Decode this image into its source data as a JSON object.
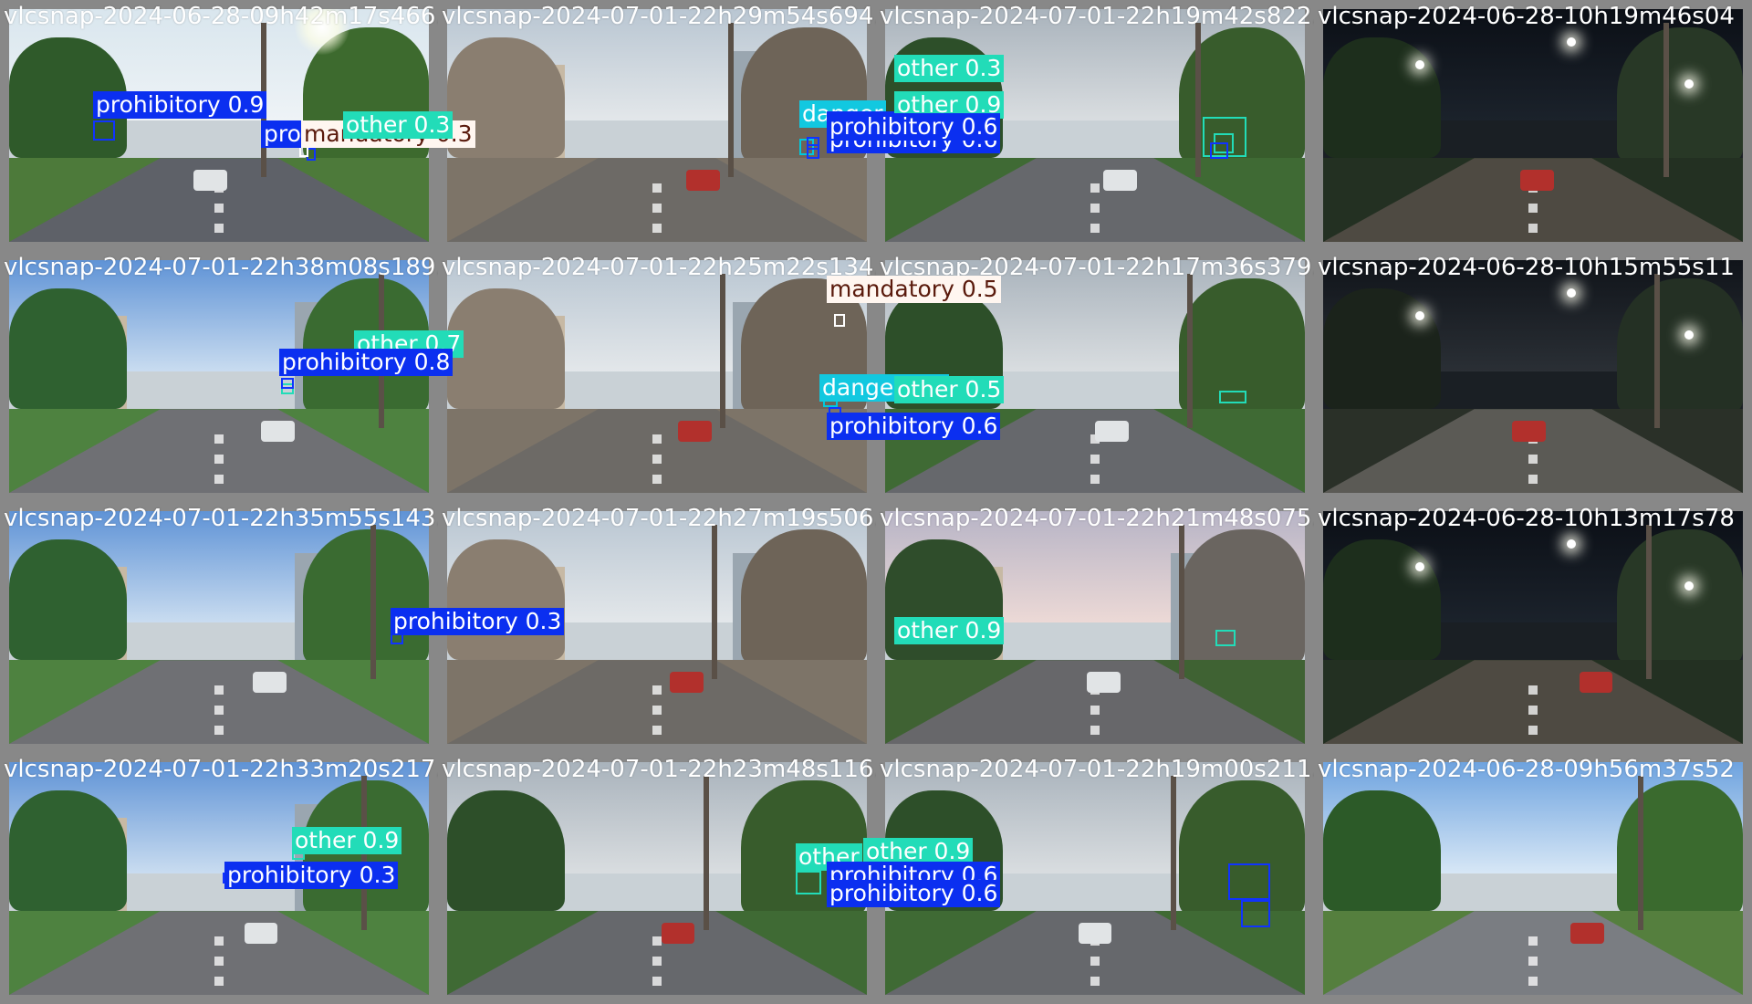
{
  "tiles": [
    {
      "filename": "vlcsnap-2024-06-28-09h42m17s466.jpg",
      "scene": "day-sun",
      "detections": [
        {
          "label": "prohibitory 0.9",
          "class": "prohibitory",
          "box": "b1",
          "lab": "l1"
        },
        {
          "label": "prohibitory",
          "class": "prohibitory",
          "box": "b2",
          "lab": "l2"
        },
        {
          "label": "mandatory 0.3",
          "class": "mandatory",
          "box": "b3",
          "lab": "l3"
        },
        {
          "label": "other 0.3",
          "class": "other",
          "box": "b4",
          "lab": "l4"
        }
      ]
    },
    {
      "filename": "vlcsnap-2024-07-01-22h29m54s694.jpg",
      "scene": "day-city",
      "detections": [
        {
          "label": "danger",
          "class": "danger",
          "box": "b5",
          "lab": "l5"
        },
        {
          "label": "prohibitory 0.6",
          "class": "prohibitory",
          "box": "b6",
          "lab": "l6"
        },
        {
          "label": "prohibitory 0.6",
          "class": "prohibitory",
          "box": "b7",
          "lab": "l7"
        }
      ]
    },
    {
      "filename": "vlcsnap-2024-07-01-22h19m42s822.jpg",
      "scene": "day-cloud",
      "detections": [
        {
          "label": "other 0.3",
          "class": "other",
          "box": "b8",
          "lab": "l8"
        },
        {
          "label": "other 0.9",
          "class": "other",
          "box": "b9",
          "lab": "l9"
        },
        {
          "label": "prohibitory 0.6",
          "class": "prohibitory",
          "box": "b10",
          "lab": "l10"
        }
      ]
    },
    {
      "filename": "vlcsnap-2024-06-28-10h19m46s04",
      "scene": "night",
      "detections": []
    },
    {
      "filename": "vlcsnap-2024-07-01-22h38m08s189.jpg",
      "scene": "day-blue",
      "detections": [
        {
          "label": "other 0.7",
          "class": "other",
          "box": "b11",
          "lab": "l11"
        },
        {
          "label": "prohibitory 0.8",
          "class": "prohibitory",
          "box": "b12",
          "lab": "l12"
        }
      ]
    },
    {
      "filename": "vlcsnap-2024-07-01-22h25m22s134.jpg",
      "scene": "day-city",
      "detections": [
        {
          "label": "mandatory 0.5",
          "class": "mandatory",
          "box": "b13",
          "lab": "l13"
        },
        {
          "label": "danger 0.5",
          "class": "danger",
          "box": "b14",
          "lab": "l14"
        },
        {
          "label": "prohibitory 0.6",
          "class": "prohibitory",
          "box": "b15",
          "lab": "l15"
        }
      ]
    },
    {
      "filename": "vlcsnap-2024-07-01-22h17m36s379.jpg",
      "scene": "day-cloud",
      "detections": [
        {
          "label": "other 0.5",
          "class": "other",
          "box": "b16",
          "lab": "l16"
        }
      ]
    },
    {
      "filename": "vlcsnap-2024-06-28-10h15m55s11",
      "scene": "night-wide",
      "detections": []
    },
    {
      "filename": "vlcsnap-2024-07-01-22h35m55s143.jpg",
      "scene": "day-blue",
      "detections": [
        {
          "label": "prohibitory 0.3",
          "class": "prohibitory",
          "box": "b17",
          "lab": "l17"
        }
      ]
    },
    {
      "filename": "vlcsnap-2024-07-01-22h27m19s506.jpg",
      "scene": "day-city",
      "detections": []
    },
    {
      "filename": "vlcsnap-2024-07-01-22h21m48s075.jpg",
      "scene": "day-pink",
      "detections": [
        {
          "label": "other 0.9",
          "class": "other",
          "box": "b18",
          "lab": "l18"
        }
      ]
    },
    {
      "filename": "vlcsnap-2024-06-28-10h13m17s78",
      "scene": "night",
      "detections": []
    },
    {
      "filename": "vlcsnap-2024-07-01-22h33m20s217.jpg",
      "scene": "day-blue",
      "detections": [
        {
          "label": "other 0.9",
          "class": "other",
          "box": "b19",
          "lab": "l19"
        },
        {
          "label": "prohibitory 0.3",
          "class": "prohibitory",
          "box": "b20",
          "lab": "l20"
        }
      ]
    },
    {
      "filename": "vlcsnap-2024-07-01-22h23m48s116.jpg",
      "scene": "day-cloud",
      "detections": [
        {
          "label": "other",
          "class": "other",
          "box": "b21",
          "lab": "l21"
        }
      ]
    },
    {
      "filename": "vlcsnap-2024-07-01-22h19m00s211.jpg",
      "scene": "day-cloud",
      "detections": [
        {
          "label": "other 0.9",
          "class": "other",
          "box": "b22",
          "lab": "l22"
        },
        {
          "label": "prohibitory 0.6",
          "class": "prohibitory",
          "box": "b23",
          "lab": "l23"
        },
        {
          "label": "prohibitory 0.6",
          "class": "prohibitory",
          "box": "b24",
          "lab": "l24"
        }
      ]
    },
    {
      "filename": "vlcsnap-2024-06-28-09h56m37s52",
      "scene": "day-sky",
      "detections": []
    }
  ],
  "class_colors": {
    "prohibitory": "#0b2ff0",
    "mandatory": "#fff6f0",
    "danger": "#12c8e0",
    "other": "#22dcb8"
  }
}
